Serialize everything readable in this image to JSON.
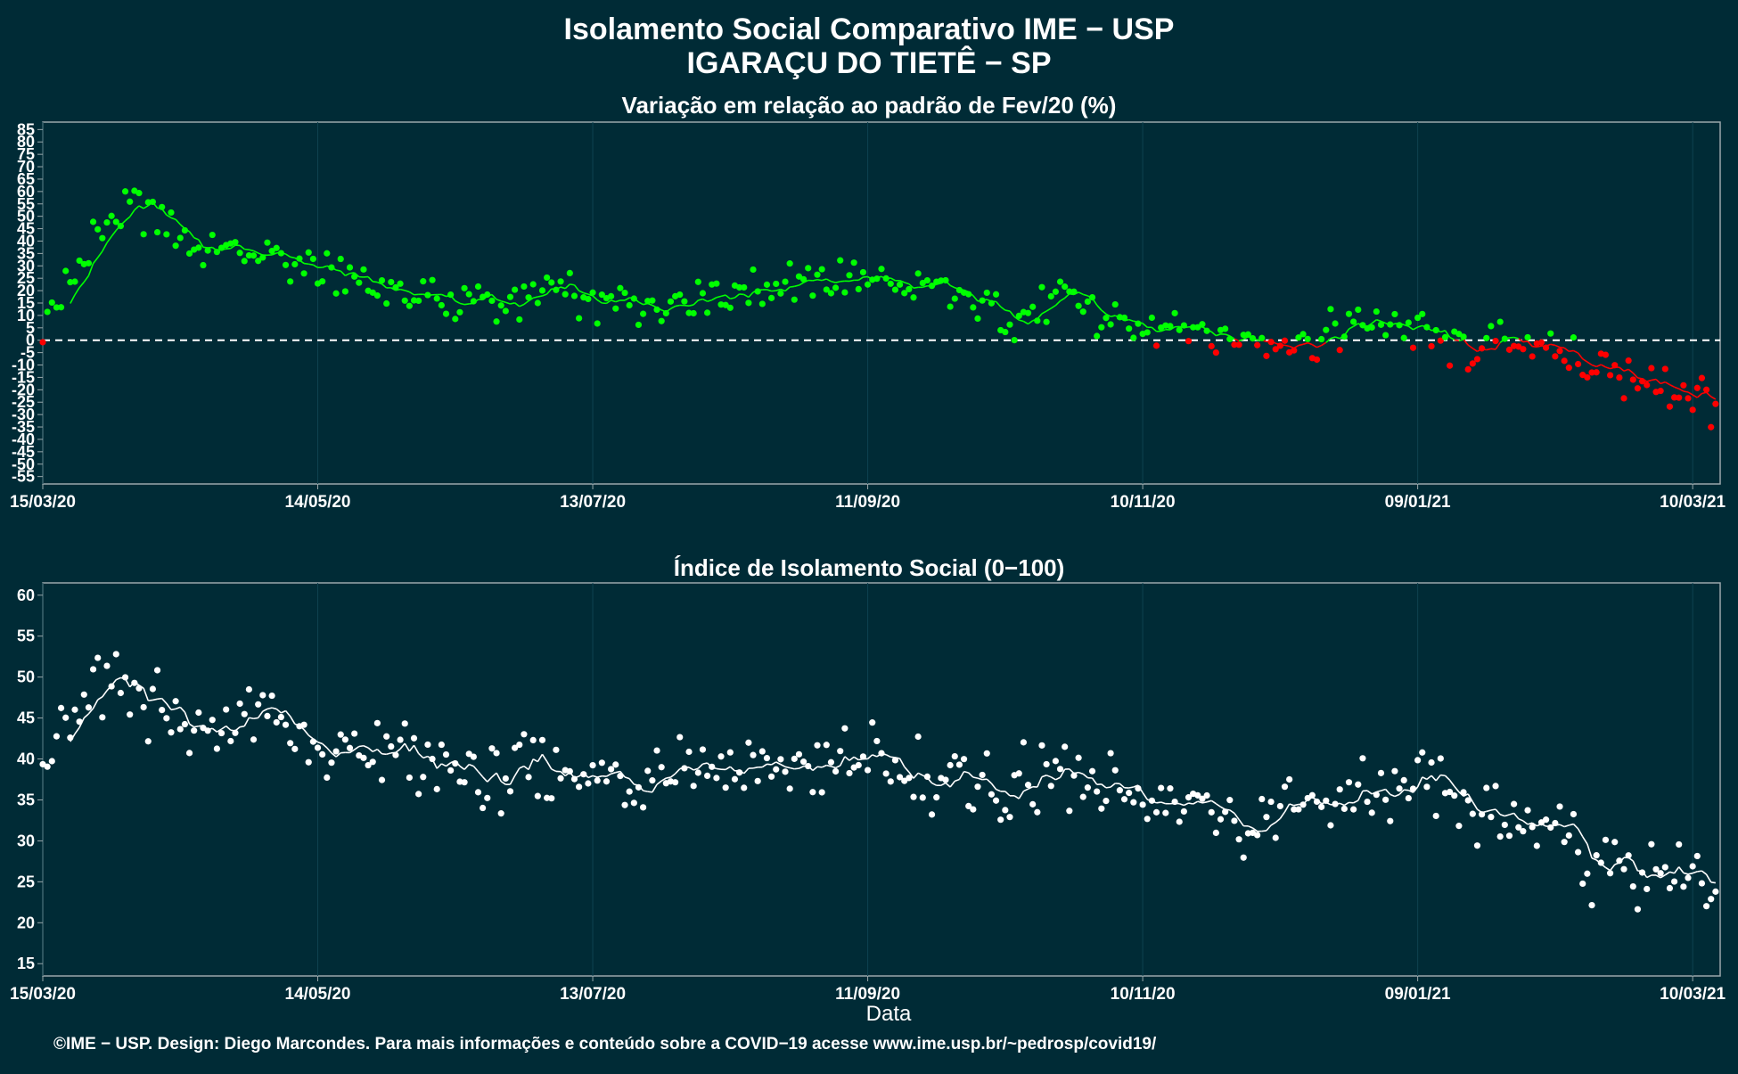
{
  "title": "Isolamento Social Comparativo IME − USP",
  "subtitle": "IGARAÇU DO TIETÊ − SP",
  "footer": "©IME − USP. Design: Diego Marcondes. Para mais informações e conteúdo sobre a COVID−19 acesse www.ime.usp.br/~pedrosp/covid19/",
  "colors": {
    "background": "#002b36",
    "grid": "#0e4250",
    "positive": "#00ff00",
    "negative": "#ff0000",
    "index": "#ffffff",
    "axis": "#9aa8ab"
  },
  "chart_data": [
    {
      "type": "scatter",
      "title": "Variação em relação ao padrão de Fev/20 (%)",
      "xlabel": "",
      "ylabel": "",
      "x_start": "15/03/20",
      "x_end": "15/03/21",
      "x_ticks": [
        "15/03/20",
        "14/05/20",
        "13/07/20",
        "11/09/20",
        "10/11/20",
        "09/01/21",
        "10/03/21"
      ],
      "x_tick_days": [
        0,
        60,
        120,
        180,
        240,
        300,
        360
      ],
      "y_ticks": [
        85,
        80,
        75,
        70,
        65,
        60,
        55,
        50,
        45,
        40,
        35,
        30,
        25,
        20,
        15,
        10,
        5,
        0,
        -5,
        -10,
        -15,
        -20,
        -25,
        -30,
        -35,
        -40,
        -45,
        -50,
        -55
      ],
      "ylim": [
        -58,
        88
      ],
      "reference_line": 0,
      "grid": true,
      "series": [
        {
          "type": "scatter",
          "anchors": [
            [
              0,
              5
            ],
            [
              5,
              20
            ],
            [
              12,
              45
            ],
            [
              20,
              52
            ],
            [
              30,
              42
            ],
            [
              40,
              36
            ],
            [
              50,
              36
            ],
            [
              60,
              27
            ],
            [
              70,
              24
            ],
            [
              80,
              20
            ],
            [
              90,
              15
            ],
            [
              100,
              14
            ],
            [
              110,
              21
            ],
            [
              120,
              16
            ],
            [
              130,
              15
            ],
            [
              140,
              21
            ],
            [
              150,
              18
            ],
            [
              160,
              23
            ],
            [
              170,
              22
            ],
            [
              180,
              28
            ],
            [
              186,
              21
            ],
            [
              195,
              17
            ],
            [
              205,
              15
            ],
            [
              212,
              6
            ],
            [
              218,
              14
            ],
            [
              225,
              15
            ],
            [
              232,
              8
            ],
            [
              240,
              2
            ],
            [
              248,
              6
            ],
            [
              255,
              4
            ],
            [
              262,
              -1
            ],
            [
              270,
              3
            ],
            [
              280,
              1
            ],
            [
              290,
              8
            ],
            [
              300,
              3
            ],
            [
              310,
              -3
            ],
            [
              320,
              0
            ],
            [
              330,
              -5
            ],
            [
              340,
              -12
            ],
            [
              350,
              -18
            ],
            [
              360,
              -22
            ],
            [
              366,
              -26
            ]
          ],
          "scatter_amp": 11,
          "moving_average_window": 7,
          "color_positive": "#00ff00",
          "color_negative": "#ff0000"
        }
      ]
    },
    {
      "type": "scatter",
      "title": "Índice de Isolamento Social (0−100)",
      "xlabel": "Data",
      "ylabel": "",
      "x_start": "15/03/20",
      "x_end": "15/03/21",
      "x_ticks": [
        "15/03/20",
        "14/05/20",
        "13/07/20",
        "11/09/20",
        "10/11/20",
        "09/01/21",
        "10/03/21"
      ],
      "x_tick_days": [
        0,
        60,
        120,
        180,
        240,
        300,
        360
      ],
      "y_ticks": [
        60,
        55,
        50,
        45,
        40,
        35,
        30,
        25,
        20,
        15
      ],
      "ylim": [
        13.5,
        61.5
      ],
      "grid": true,
      "series": [
        {
          "type": "scatter",
          "anchors": [
            [
              0,
              40
            ],
            [
              5,
              43
            ],
            [
              12,
              49
            ],
            [
              20,
              48
            ],
            [
              30,
              45
            ],
            [
              40,
              44
            ],
            [
              50,
              45
            ],
            [
              60,
              40
            ],
            [
              70,
              40
            ],
            [
              80,
              40
            ],
            [
              90,
              38
            ],
            [
              100,
              38
            ],
            [
              110,
              39
            ],
            [
              120,
              37
            ],
            [
              130,
              38
            ],
            [
              140,
              39
            ],
            [
              150,
              38
            ],
            [
              160,
              40
            ],
            [
              170,
              40
            ],
            [
              180,
              40
            ],
            [
              186,
              39
            ],
            [
              195,
              38
            ],
            [
              205,
              36
            ],
            [
              212,
              37
            ],
            [
              218,
              37
            ],
            [
              225,
              37
            ],
            [
              232,
              36
            ],
            [
              240,
              34
            ],
            [
              248,
              35
            ],
            [
              255,
              34
            ],
            [
              262,
              33
            ],
            [
              270,
              33
            ],
            [
              280,
              35
            ],
            [
              290,
              36
            ],
            [
              300,
              36
            ],
            [
              310,
              34
            ],
            [
              320,
              33
            ],
            [
              330,
              32
            ],
            [
              340,
              26
            ],
            [
              350,
              26
            ],
            [
              360,
              27
            ],
            [
              366,
              19
            ]
          ],
          "scatter_amp": 5.5,
          "moving_average_window": 7,
          "color": "#ffffff"
        }
      ]
    }
  ]
}
